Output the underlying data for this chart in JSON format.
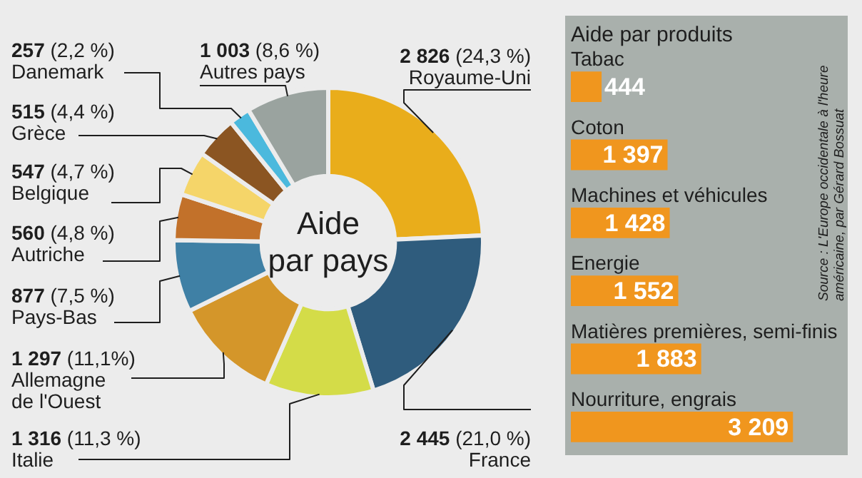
{
  "chart_data": [
    {
      "type": "donut",
      "title": "Aide\npar pays",
      "categories": [
        "Royaume-Uni",
        "France",
        "Italie",
        "Allemagne de l'Ouest",
        "Pays-Bas",
        "Autriche",
        "Belgique",
        "Grèce",
        "Danemark",
        "Autres pays"
      ],
      "values": [
        2826,
        2445,
        1316,
        1297,
        877,
        560,
        547,
        515,
        257,
        1003
      ],
      "value_labels": [
        "2 826 (24,3 %)",
        "2 445 (21,0 %)",
        "1 316 (11,3 %)",
        "1 297 (11,1%)",
        "877 (7,5 %)",
        "560 (4,8 %)",
        "547 (4,7 %)",
        "515 (4,4 %)",
        "257 (2,2 %)",
        "1 003 (8,6 %)"
      ],
      "colors": [
        "#e9ad1b",
        "#2f5c7d",
        "#d4dc48",
        "#d4962a",
        "#3f80a5",
        "#c2712a",
        "#f5d569",
        "#8b5522",
        "#4bb9dd",
        "#9aa39f"
      ]
    },
    {
      "type": "bar",
      "orientation": "horizontal",
      "title": "Aide par produits",
      "categories": [
        "Tabac",
        "Coton",
        "Machines et véhicules",
        "Energie",
        "Matières premières, semi-finis",
        "Nourriture, engrais"
      ],
      "values": [
        444,
        1397,
        1428,
        1552,
        1883,
        3209
      ],
      "value_labels": [
        "444",
        "1 397",
        "1 428",
        "1 552",
        "1 883",
        "3 209"
      ],
      "color": "#f0961e",
      "annotations": [
        "Source : L'Europe occidentale à l'heure américaine, par Gérard Bossuat"
      ]
    }
  ]
}
